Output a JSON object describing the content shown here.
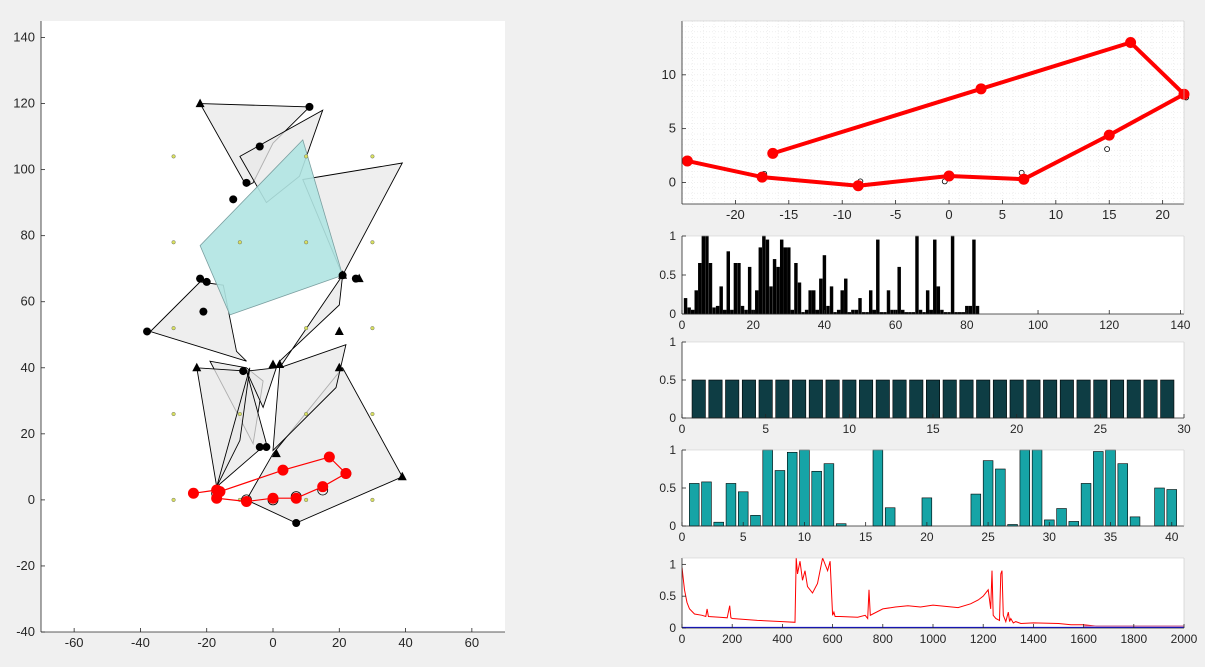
{
  "figure": {
    "background": "#f0f0f0"
  },
  "chart_data": [
    {
      "type": "scatter",
      "name": "workspace",
      "xlim": [
        -70,
        70
      ],
      "ylim": [
        -40,
        145
      ],
      "xticks": [
        -60,
        -40,
        -20,
        0,
        20,
        40,
        60
      ],
      "yticks": [
        -40,
        -20,
        0,
        20,
        40,
        60,
        80,
        100,
        120,
        140
      ],
      "grid": false,
      "colors": {
        "polygon_fill": "#e8e8e8",
        "highlight_fill": "#b0e4e2",
        "path": "#ff0000",
        "nodes": "#000000",
        "seeds": "#d8e060"
      },
      "grey_polygons": [
        [
          [
            -22,
            120
          ],
          [
            11,
            119
          ],
          [
            0,
            108
          ],
          [
            -6,
            96
          ],
          [
            -8,
            95
          ]
        ],
        [
          [
            -10,
            104
          ],
          [
            15,
            118
          ],
          [
            8,
            98
          ],
          [
            -2,
            90
          ]
        ],
        [
          [
            9,
            97
          ],
          [
            39,
            102
          ],
          [
            21,
            68
          ]
        ],
        [
          [
            -37,
            51
          ],
          [
            -22,
            66
          ],
          [
            -15,
            65
          ],
          [
            -11,
            45
          ],
          [
            -8,
            42
          ]
        ],
        [
          [
            -8,
            40
          ],
          [
            -3,
            36
          ],
          [
            -6,
            17
          ],
          [
            -19,
            42
          ]
        ],
        [
          [
            2,
            42
          ],
          [
            20,
            59
          ],
          [
            21,
            68
          ],
          [
            2,
            40
          ]
        ],
        [
          [
            -23,
            40
          ],
          [
            -17,
            4
          ],
          [
            -2,
            17
          ],
          [
            -8,
            39
          ]
        ],
        [
          [
            0,
            14
          ],
          [
            21,
            40
          ],
          [
            39,
            7
          ],
          [
            7,
            -7
          ],
          [
            -8,
            0
          ]
        ],
        [
          [
            2,
            40
          ],
          [
            22,
            47
          ],
          [
            19,
            34
          ],
          [
            0,
            15
          ]
        ],
        [
          [
            1,
            40
          ],
          [
            -3,
            28
          ],
          [
            -8,
            39
          ]
        ],
        [
          [
            -17,
            4
          ],
          [
            -7,
            40
          ],
          [
            -10,
            18
          ]
        ]
      ],
      "highlight_polygon": [
        [
          -22,
          77
        ],
        [
          -13,
          56
        ],
        [
          21,
          68
        ],
        [
          9,
          109
        ]
      ],
      "path": [
        [
          -24,
          2
        ],
        [
          -17,
          3
        ],
        [
          -17,
          0.5
        ],
        [
          -8,
          -0.5
        ],
        [
          0,
          0.5
        ],
        [
          7,
          0.5
        ],
        [
          15,
          4
        ],
        [
          22,
          8
        ],
        [
          17,
          13
        ],
        [
          3,
          9
        ],
        [
          -16,
          2.5
        ]
      ],
      "path_circles": [
        [
          -17,
          2
        ],
        [
          -8,
          0
        ],
        [
          0,
          0
        ],
        [
          7,
          1
        ],
        [
          15,
          3
        ],
        [
          22,
          8
        ]
      ],
      "nodes_dot": [
        [
          11,
          119
        ],
        [
          -4,
          107
        ],
        [
          -8,
          96
        ],
        [
          -12,
          91
        ],
        [
          -22,
          67
        ],
        [
          -20,
          66
        ],
        [
          -21,
          57
        ],
        [
          -38,
          51
        ],
        [
          -9,
          39
        ],
        [
          -4,
          16
        ],
        [
          -2,
          16
        ],
        [
          7,
          -7
        ],
        [
          21,
          68
        ],
        [
          25,
          67
        ]
      ],
      "nodes_tri": [
        [
          -22,
          120
        ],
        [
          21,
          68
        ],
        [
          26,
          67
        ],
        [
          20,
          51
        ],
        [
          0,
          41
        ],
        [
          2,
          41
        ],
        [
          20,
          40
        ],
        [
          -23,
          40
        ],
        [
          1,
          14
        ],
        [
          39,
          7
        ]
      ],
      "seeds": [
        [
          -30,
          104
        ],
        [
          -30,
          78
        ],
        [
          -30,
          52
        ],
        [
          -30,
          26
        ],
        [
          -30,
          0
        ],
        [
          10,
          104
        ],
        [
          10,
          78
        ],
        [
          10,
          52
        ],
        [
          10,
          26
        ],
        [
          10,
          0
        ],
        [
          30,
          104
        ],
        [
          30,
          78
        ],
        [
          30,
          52
        ],
        [
          30,
          26
        ],
        [
          30,
          0
        ],
        [
          -10,
          78
        ],
        [
          -10,
          26
        ],
        [
          -10,
          0
        ]
      ]
    },
    {
      "type": "line",
      "name": "trajectory",
      "xlim": [
        -25,
        22
      ],
      "ylim": [
        -2,
        15
      ],
      "xticks": [
        -20,
        -15,
        -10,
        -5,
        0,
        5,
        10,
        15,
        20
      ],
      "yticks": [
        0,
        5,
        10
      ],
      "grid": true,
      "series": [
        {
          "x": [
            -24.5,
            -17.5,
            -8.5,
            0,
            7,
            15,
            22,
            17,
            3,
            -16.5
          ],
          "y": [
            2,
            0.5,
            -0.3,
            0.6,
            0.3,
            4.4,
            8.2,
            13,
            8.7,
            2.7
          ]
        }
      ],
      "open_points": [
        [
          -17.3,
          0.8
        ],
        [
          -8.3,
          0.1
        ],
        [
          -0.4,
          0.1
        ],
        [
          6.8,
          0.9
        ],
        [
          14.8,
          3.1
        ],
        [
          22.2,
          7.9
        ]
      ]
    },
    {
      "type": "bar",
      "name": "bars1",
      "xlim": [
        0,
        141
      ],
      "ylim": [
        0,
        1
      ],
      "xticks": [
        0,
        20,
        40,
        60,
        80,
        100,
        120,
        140
      ],
      "yticks": [
        0,
        0.5,
        1
      ],
      "color": "#000000",
      "x": [
        1,
        2,
        3,
        4,
        5,
        6,
        7,
        8,
        9,
        10,
        11,
        12,
        13,
        14,
        15,
        16,
        17,
        18,
        19,
        20,
        21,
        22,
        23,
        24,
        25,
        26,
        27,
        28,
        29,
        30,
        31,
        32,
        33,
        34,
        35,
        36,
        37,
        38,
        39,
        40,
        41,
        42,
        43,
        44,
        45,
        46,
        47,
        48,
        49,
        50,
        51,
        52,
        53,
        54,
        55,
        56,
        57,
        58,
        59,
        60,
        61,
        62,
        63,
        64,
        65,
        66,
        67,
        68,
        69,
        70,
        71,
        72,
        73,
        74,
        75,
        76,
        77,
        78,
        79,
        80,
        81,
        82,
        83
      ],
      "values": [
        0.2,
        0.08,
        0.05,
        0.3,
        0.65,
        1,
        1,
        0.65,
        0.08,
        0.1,
        0.35,
        0.05,
        0.8,
        0.05,
        0.65,
        0.65,
        0.1,
        0.05,
        0.6,
        0.05,
        0.3,
        0.85,
        1,
        0.95,
        0.35,
        0.7,
        0.6,
        0.95,
        0.85,
        0.85,
        0.05,
        0.65,
        0.4,
        0.02,
        0.05,
        0.3,
        0.3,
        0.05,
        0.45,
        0.75,
        0.1,
        0.35,
        0.02,
        0.05,
        0.3,
        0.45,
        0.02,
        0.05,
        0.05,
        0.2,
        0.02,
        0.02,
        0.3,
        0.05,
        0.95,
        0.02,
        0.02,
        0.3,
        0.05,
        0.05,
        0.6,
        0.05,
        0.02,
        0.02,
        0.02,
        1,
        0.05,
        0.02,
        0.3,
        0.05,
        0.95,
        0.35,
        0.05,
        0.02,
        0.02,
        1,
        0.02,
        0.02,
        0.02,
        0.1,
        0.1,
        0.95,
        0.1
      ]
    },
    {
      "type": "bar",
      "name": "bars2",
      "xlim": [
        0,
        30
      ],
      "ylim": [
        0,
        1
      ],
      "xticks": [
        0,
        5,
        10,
        15,
        20,
        25,
        30
      ],
      "yticks": [
        0,
        0.5,
        1
      ],
      "color": "#0e3d44",
      "x": [
        1,
        2,
        3,
        4,
        5,
        6,
        7,
        8,
        9,
        10,
        11,
        12,
        13,
        14,
        15,
        16,
        17,
        18,
        19,
        20,
        21,
        22,
        23,
        24,
        25,
        26,
        27,
        28,
        29
      ],
      "values": [
        0.5,
        0.5,
        0.5,
        0.5,
        0.5,
        0.5,
        0.5,
        0.5,
        0.5,
        0.5,
        0.5,
        0.5,
        0.5,
        0.5,
        0.5,
        0.5,
        0.5,
        0.5,
        0.5,
        0.5,
        0.5,
        0.5,
        0.5,
        0.5,
        0.5,
        0.5,
        0.5,
        0.5,
        0.5
      ]
    },
    {
      "type": "bar",
      "name": "bars3",
      "xlim": [
        0,
        41
      ],
      "ylim": [
        0,
        1
      ],
      "xticks": [
        0,
        5,
        10,
        15,
        20,
        25,
        30,
        35,
        40
      ],
      "yticks": [
        0,
        0.5,
        1
      ],
      "color": "#16a4a6",
      "x": [
        1,
        2,
        3,
        4,
        5,
        6,
        7,
        8,
        9,
        10,
        11,
        12,
        13,
        14,
        15,
        16,
        17,
        18,
        19,
        20,
        21,
        22,
        23,
        24,
        25,
        26,
        27,
        28,
        29,
        30,
        31,
        32,
        33,
        34,
        35,
        36,
        37,
        38,
        39,
        40
      ],
      "values": [
        0.56,
        0.58,
        0.05,
        0.56,
        0.45,
        0.14,
        1,
        0.73,
        0.97,
        1,
        0.72,
        0.82,
        0.03,
        0,
        0,
        1,
        0.24,
        0,
        0,
        0.37,
        0,
        0,
        0,
        0.42,
        0.86,
        0.75,
        0.02,
        1,
        1,
        0.08,
        0.23,
        0.06,
        0.56,
        0.98,
        1,
        0.82,
        0.12,
        0,
        0.5,
        0.48
      ]
    },
    {
      "type": "line",
      "name": "convergence",
      "xlim": [
        0,
        2000
      ],
      "ylim": [
        0,
        1.1
      ],
      "xticks": [
        0,
        200,
        400,
        600,
        800,
        1000,
        1200,
        1400,
        1600,
        1800,
        2000
      ],
      "yticks": [
        0,
        0.5,
        1
      ],
      "series": [
        {
          "color": "#ff0000",
          "x": [
            0,
            10,
            20,
            30,
            50,
            80,
            95,
            100,
            105,
            150,
            180,
            190,
            195,
            200,
            300,
            400,
            450,
            455,
            460,
            470,
            480,
            490,
            500,
            520,
            540,
            560,
            580,
            590,
            600,
            605,
            610,
            630,
            700,
            730,
            740,
            745,
            750,
            760,
            800,
            850,
            900,
            950,
            1000,
            1050,
            1100,
            1150,
            1180,
            1200,
            1220,
            1230,
            1235,
            1240,
            1250,
            1265,
            1270,
            1275,
            1280,
            1290,
            1300,
            1305,
            1310,
            1320,
            1330,
            1350,
            1400,
            1500,
            1550,
            1600,
            1650,
            1700,
            1800,
            1900,
            2000
          ],
          "y": [
            0.95,
            0.6,
            0.4,
            0.3,
            0.22,
            0.2,
            0.18,
            0.3,
            0.18,
            0.17,
            0.16,
            0.35,
            0.16,
            0.15,
            0.12,
            0.1,
            0.09,
            1.1,
            0.85,
            1.05,
            0.75,
            0.9,
            0.65,
            0.55,
            0.7,
            1.1,
            0.9,
            1.05,
            0.2,
            0.25,
            0.18,
            0.18,
            0.17,
            0.2,
            0.15,
            0.6,
            0.2,
            0.22,
            0.3,
            0.33,
            0.35,
            0.33,
            0.36,
            0.34,
            0.32,
            0.38,
            0.44,
            0.5,
            0.6,
            0.3,
            0.9,
            0.2,
            0.15,
            0.12,
            0.85,
            0.9,
            0.2,
            0.1,
            0.25,
            0.1,
            0.15,
            0.08,
            0.1,
            0.07,
            0.08,
            0.07,
            0.05,
            0.05,
            0.03,
            0.03,
            0.03,
            0.03,
            0.03
          ]
        },
        {
          "color": "#0000ff",
          "x": [
            0,
            2000
          ],
          "y": [
            0.01,
            0.01
          ]
        },
        {
          "color": "#b066a8",
          "x": [
            1600,
            2000
          ],
          "y": [
            0.03,
            0.03
          ]
        }
      ]
    }
  ]
}
